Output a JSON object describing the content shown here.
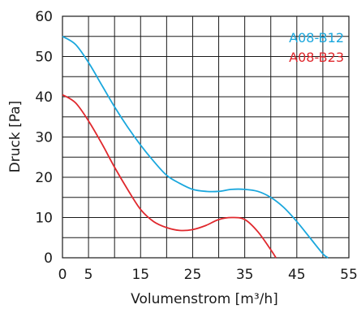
{
  "chart_data": {
    "type": "line",
    "xlabel": "Volumenstrom [m³/h]",
    "ylabel": "Druck [Pa]",
    "xlim": [
      0,
      55
    ],
    "ylim": [
      0,
      60
    ],
    "x_ticks": [
      0,
      5,
      15,
      25,
      35,
      45,
      55
    ],
    "y_ticks": [
      0,
      10,
      20,
      30,
      40,
      50,
      60
    ],
    "x_tick_labels": [
      "0",
      "5",
      "15",
      "25",
      "35",
      "45",
      "55"
    ],
    "y_tick_labels": [
      "0",
      "10",
      "20",
      "30",
      "40",
      "50",
      "60"
    ],
    "grid": true,
    "legend_position": "top-right",
    "series": [
      {
        "name": "A08-B12",
        "color": "#1aa7dd",
        "x": [
          0,
          2.5,
          5,
          7.5,
          10,
          12.5,
          15,
          17.5,
          20,
          22.5,
          25,
          27.5,
          30,
          32.5,
          35,
          37.5,
          40,
          42.5,
          45,
          47.5,
          50,
          51
        ],
        "y": [
          55,
          53,
          48.5,
          43,
          37.5,
          32.5,
          28,
          24,
          20.5,
          18.5,
          17,
          16.5,
          16.5,
          17,
          17,
          16.5,
          15,
          12.5,
          9,
          5,
          1,
          0
        ]
      },
      {
        "name": "A08-B23",
        "color": "#e0282d",
        "x": [
          0,
          2.5,
          5,
          7.5,
          10,
          12.5,
          15,
          17.5,
          20,
          22.5,
          25,
          27.5,
          30,
          32.5,
          35,
          37.5,
          40,
          41
        ],
        "y": [
          40.5,
          38.5,
          34,
          28.5,
          22.5,
          17,
          12,
          9,
          7.5,
          6.8,
          7,
          8,
          9.5,
          10,
          9.5,
          6.5,
          2,
          0
        ]
      }
    ]
  }
}
